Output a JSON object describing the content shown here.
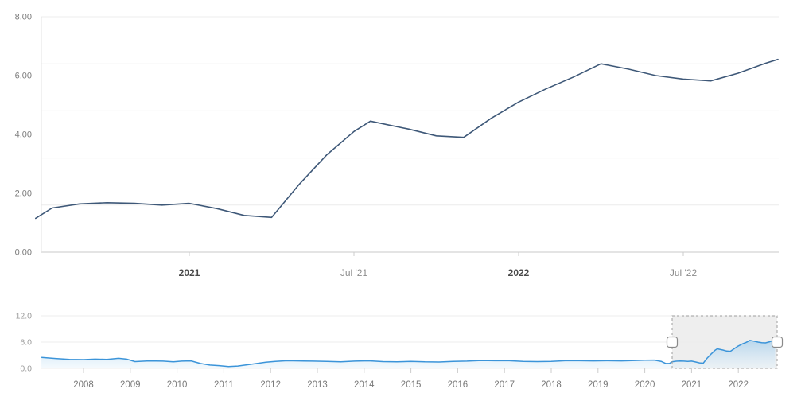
{
  "page": {
    "background": "#ffffff"
  },
  "chart_data": [
    {
      "id": "main",
      "type": "line",
      "title": "",
      "xlabel": "",
      "ylabel": "",
      "ylim": [
        0,
        8
      ],
      "grid": true,
      "y_tick_labels": [
        "8.00",
        "6.00",
        "4.00",
        "2.00",
        "0.00"
      ],
      "x_unit": "months since Jul 2020",
      "x_ticks": [
        {
          "label": "2021",
          "month": 6,
          "bold": true
        },
        {
          "label": "Jul '21",
          "month": 12,
          "bold": false
        },
        {
          "label": "2022",
          "month": 18,
          "bold": true
        },
        {
          "label": "Jul '22",
          "month": 24,
          "bold": false
        }
      ],
      "line_color": "#3e5878",
      "series": [
        {
          "name": "value",
          "points": [
            [
              0.4,
              1.15
            ],
            [
              1,
              1.5
            ],
            [
              2,
              1.64
            ],
            [
              3,
              1.68
            ],
            [
              4,
              1.66
            ],
            [
              5,
              1.6
            ],
            [
              6,
              1.66
            ],
            [
              7,
              1.48
            ],
            [
              8,
              1.25
            ],
            [
              9,
              1.18
            ],
            [
              10,
              2.3
            ],
            [
              11,
              3.3
            ],
            [
              12,
              4.1
            ],
            [
              12.6,
              4.45
            ],
            [
              14,
              4.18
            ],
            [
              15,
              3.95
            ],
            [
              16,
              3.9
            ],
            [
              17,
              4.55
            ],
            [
              18,
              5.1
            ],
            [
              19,
              5.55
            ],
            [
              20,
              5.95
            ],
            [
              21,
              6.4
            ],
            [
              22,
              6.22
            ],
            [
              23,
              6.0
            ],
            [
              24,
              5.88
            ],
            [
              25,
              5.82
            ],
            [
              26,
              6.08
            ],
            [
              27,
              6.42
            ],
            [
              27.45,
              6.55
            ]
          ]
        }
      ]
    },
    {
      "id": "navigator",
      "type": "area",
      "ylim": [
        0,
        12
      ],
      "grid": true,
      "y_tick_labels": [
        "12.0",
        "6.0",
        "0.0"
      ],
      "x_unit": "year",
      "x_tick_years": [
        2008,
        2009,
        2010,
        2011,
        2012,
        2013,
        2014,
        2015,
        2016,
        2017,
        2018,
        2019,
        2020,
        2021,
        2022
      ],
      "line_color": "#3b94d9",
      "fill_top": "rgba(94,168,222,0.85)",
      "fill_bottom": "rgba(234,245,252,0.50)",
      "selection": {
        "start_year": 2020.585,
        "end_year": 2022.83,
        "mask_fill": "rgba(90,90,90,0.10)",
        "border_color": "#9e9e9e"
      },
      "handle": {
        "fill": "#ffffff",
        "border": "#8a8a8a"
      },
      "series": [
        {
          "name": "value-full-history",
          "points": [
            [
              2007.1,
              2.5
            ],
            [
              2007.4,
              2.25
            ],
            [
              2007.7,
              2.05
            ],
            [
              2008.0,
              2.0
            ],
            [
              2008.25,
              2.1
            ],
            [
              2008.5,
              2.05
            ],
            [
              2008.75,
              2.3
            ],
            [
              2008.92,
              2.1
            ],
            [
              2009.1,
              1.55
            ],
            [
              2009.4,
              1.7
            ],
            [
              2009.7,
              1.65
            ],
            [
              2009.92,
              1.5
            ],
            [
              2010.1,
              1.65
            ],
            [
              2010.3,
              1.7
            ],
            [
              2010.5,
              1.1
            ],
            [
              2010.7,
              0.75
            ],
            [
              2010.9,
              0.62
            ],
            [
              2011.1,
              0.4
            ],
            [
              2011.3,
              0.52
            ],
            [
              2011.6,
              0.95
            ],
            [
              2011.9,
              1.4
            ],
            [
              2012.1,
              1.6
            ],
            [
              2012.35,
              1.75
            ],
            [
              2012.6,
              1.7
            ],
            [
              2012.9,
              1.65
            ],
            [
              2013.2,
              1.6
            ],
            [
              2013.5,
              1.5
            ],
            [
              2013.8,
              1.65
            ],
            [
              2014.1,
              1.72
            ],
            [
              2014.4,
              1.55
            ],
            [
              2014.7,
              1.5
            ],
            [
              2015.0,
              1.6
            ],
            [
              2015.3,
              1.5
            ],
            [
              2015.6,
              1.45
            ],
            [
              2015.9,
              1.6
            ],
            [
              2016.2,
              1.65
            ],
            [
              2016.5,
              1.8
            ],
            [
              2016.8,
              1.75
            ],
            [
              2017.1,
              1.75
            ],
            [
              2017.4,
              1.6
            ],
            [
              2017.7,
              1.55
            ],
            [
              2018.0,
              1.6
            ],
            [
              2018.3,
              1.75
            ],
            [
              2018.6,
              1.75
            ],
            [
              2018.9,
              1.7
            ],
            [
              2019.2,
              1.75
            ],
            [
              2019.5,
              1.7
            ],
            [
              2019.8,
              1.8
            ],
            [
              2020.0,
              1.85
            ],
            [
              2020.2,
              1.9
            ],
            [
              2020.35,
              1.6
            ],
            [
              2020.45,
              1.1
            ],
            [
              2020.53,
              1.15
            ],
            [
              2020.58,
              1.5
            ],
            [
              2020.67,
              1.64
            ],
            [
              2020.75,
              1.68
            ],
            [
              2020.83,
              1.66
            ],
            [
              2020.92,
              1.6
            ],
            [
              2021.0,
              1.66
            ],
            [
              2021.08,
              1.48
            ],
            [
              2021.17,
              1.25
            ],
            [
              2021.25,
              1.18
            ],
            [
              2021.33,
              2.3
            ],
            [
              2021.42,
              3.3
            ],
            [
              2021.5,
              4.1
            ],
            [
              2021.55,
              4.45
            ],
            [
              2021.67,
              4.18
            ],
            [
              2021.75,
              3.95
            ],
            [
              2021.83,
              3.9
            ],
            [
              2021.92,
              4.55
            ],
            [
              2022.0,
              5.1
            ],
            [
              2022.08,
              5.55
            ],
            [
              2022.17,
              5.95
            ],
            [
              2022.25,
              6.4
            ],
            [
              2022.33,
              6.22
            ],
            [
              2022.42,
              6.0
            ],
            [
              2022.5,
              5.88
            ],
            [
              2022.58,
              5.82
            ],
            [
              2022.67,
              6.08
            ],
            [
              2022.75,
              6.42
            ],
            [
              2022.787,
              6.55
            ]
          ]
        }
      ]
    }
  ],
  "styles": {
    "grid_color": "#ececec",
    "axis_color": "#c9c9c9",
    "yaxis_line_color": "#e3e3e3",
    "tick_color": "#cccccc",
    "main_y_label_color": "#7d7d7d",
    "main_x_label_bold_color": "#4a4a4a",
    "main_x_label_color": "#8c8c8c",
    "nav_y_label_color": "#9c9c9c",
    "nav_x_label_color": "#7a7a7a"
  }
}
